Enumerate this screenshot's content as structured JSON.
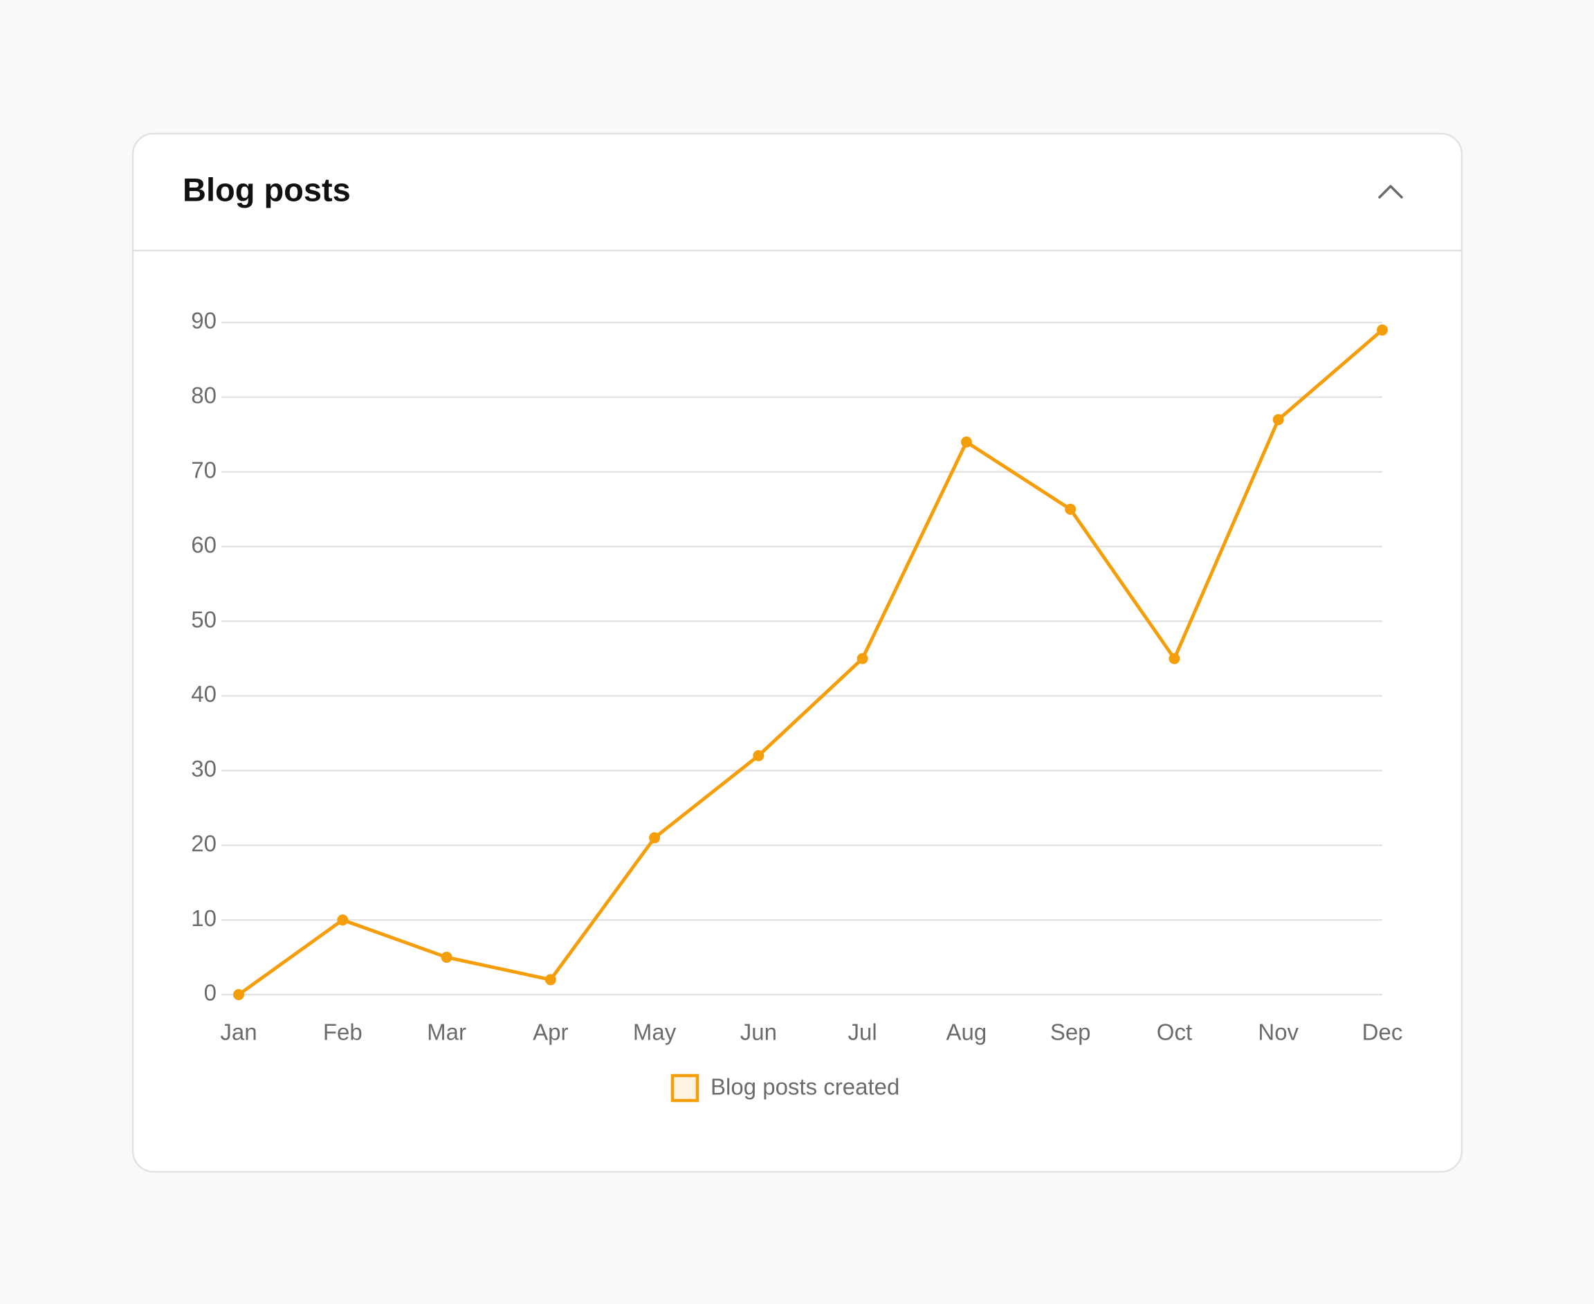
{
  "chart_data": {
    "type": "line",
    "title": "Blog posts",
    "categories": [
      "Jan",
      "Feb",
      "Mar",
      "Apr",
      "May",
      "Jun",
      "Jul",
      "Aug",
      "Sep",
      "Oct",
      "Nov",
      "Dec"
    ],
    "series": [
      {
        "name": "Blog posts created",
        "color": "#f59e0b",
        "values": [
          0,
          10,
          5,
          2,
          21,
          32,
          45,
          74,
          65,
          45,
          77,
          89
        ]
      }
    ],
    "ylim": [
      0,
      90
    ],
    "yticks": [
      0,
      10,
      20,
      30,
      40,
      50,
      60,
      70,
      80,
      90
    ],
    "grid": true,
    "legend": "bottom"
  }
}
